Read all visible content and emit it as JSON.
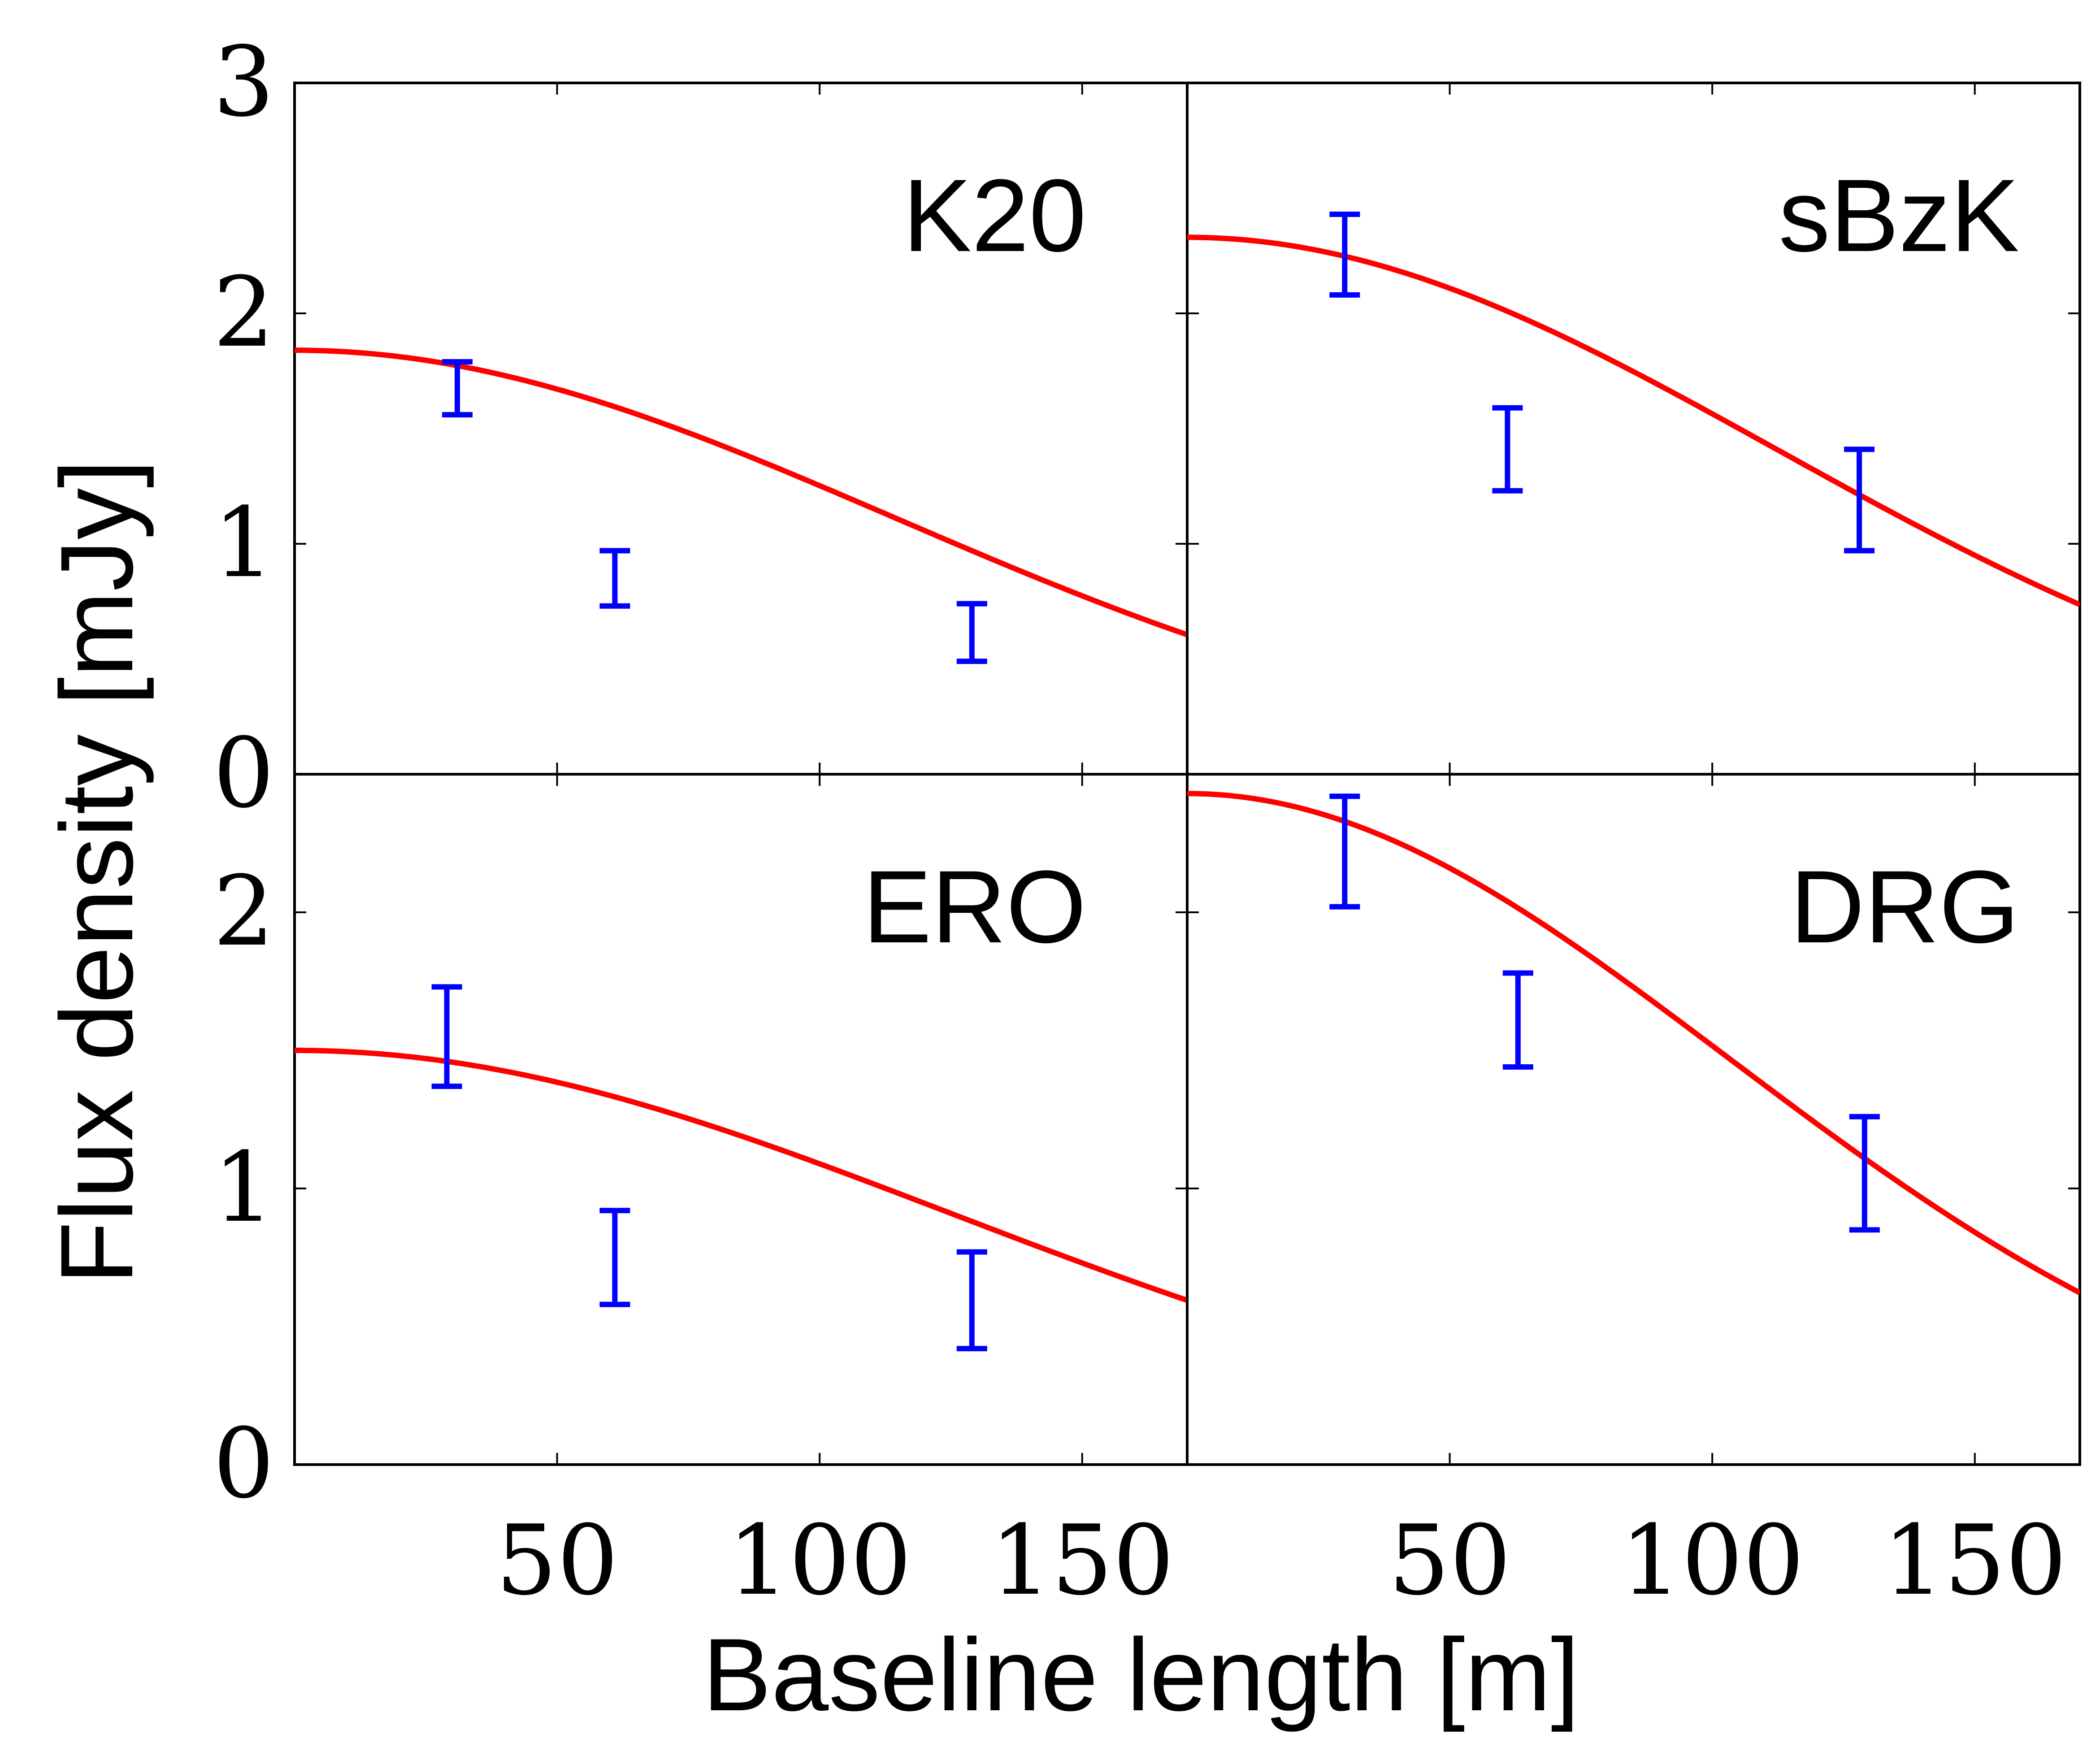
{
  "chart_data": {
    "type": "scatter",
    "xlabel": "Baseline length [m]",
    "ylabel": "Flux density [mJy]",
    "xlim": [
      0,
      170
    ],
    "xticks": [
      50,
      100,
      150
    ],
    "xtick_labels": [
      "50",
      "100",
      "150"
    ],
    "colors": {
      "points": "#0000ff",
      "model": "#ff0000",
      "axes": "#000000"
    },
    "panels": [
      {
        "id": "k20",
        "title": "K20",
        "ylim": [
          0,
          3
        ],
        "yticks": [
          0,
          1,
          2,
          3
        ],
        "ytick_labels": [
          "0",
          "1",
          "2",
          "3"
        ],
        "points": [
          {
            "x": 31,
            "low": 1.56,
            "high": 1.79
          },
          {
            "x": 61,
            "low": 0.73,
            "high": 0.97
          },
          {
            "x": 129,
            "low": 0.49,
            "high": 0.74
          }
        ],
        "model": {
          "amplitude": 1.84,
          "scale": 114
        }
      },
      {
        "id": "sbzk",
        "title": "sBzK",
        "ylim": [
          0,
          3
        ],
        "yticks": [
          0,
          1,
          2,
          3
        ],
        "ytick_labels": [
          "",
          "",
          "",
          ""
        ],
        "points": [
          {
            "x": 30,
            "low": 2.08,
            "high": 2.43
          },
          {
            "x": 61,
            "low": 1.23,
            "high": 1.59
          },
          {
            "x": 128,
            "low": 0.97,
            "high": 1.41
          }
        ],
        "model": {
          "amplitude": 2.33,
          "scale": 112
        }
      },
      {
        "id": "ero",
        "title": "ERO",
        "ylim": [
          0,
          2.5
        ],
        "yticks": [
          0,
          1,
          2
        ],
        "ytick_labels": [
          "0",
          "1",
          "2"
        ],
        "points": [
          {
            "x": 29,
            "low": 1.37,
            "high": 1.73
          },
          {
            "x": 61,
            "low": 0.58,
            "high": 0.92
          },
          {
            "x": 129,
            "low": 0.42,
            "high": 0.77
          }
        ],
        "model": {
          "amplitude": 1.5,
          "scale": 125
        }
      },
      {
        "id": "drg",
        "title": "DRG",
        "ylim": [
          0,
          2.5
        ],
        "yticks": [
          0,
          1,
          2
        ],
        "ytick_labels": [
          "",
          "",
          ""
        ],
        "points": [
          {
            "x": 30,
            "low": 2.02,
            "high": 2.42
          },
          {
            "x": 63,
            "low": 1.44,
            "high": 1.78
          },
          {
            "x": 129,
            "low": 0.85,
            "high": 1.26
          }
        ],
        "model": {
          "amplitude": 2.43,
          "scale": 103
        }
      }
    ]
  }
}
